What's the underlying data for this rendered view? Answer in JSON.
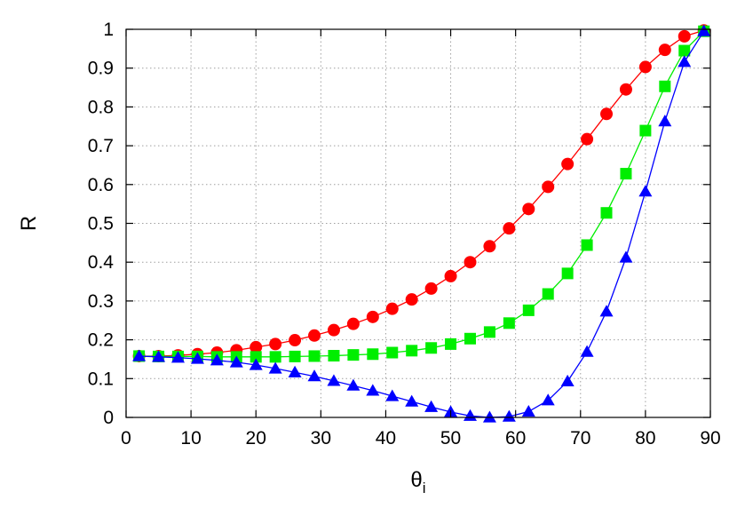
{
  "chart_data": {
    "type": "line",
    "title": "",
    "xlabel": "θ",
    "xlabel_subscript": "i",
    "ylabel": "R",
    "xlim": [
      0,
      90
    ],
    "ylim": [
      0,
      1
    ],
    "x_ticks": [
      "0",
      "10",
      "20",
      "30",
      "40",
      "50",
      "60",
      "70",
      "80",
      "90"
    ],
    "y_ticks": [
      "0",
      "0.1",
      "0.2",
      "0.3",
      "0.4",
      "0.5",
      "0.6",
      "0.7",
      "0.8",
      "0.9",
      "1"
    ],
    "grid": true,
    "legend": "none",
    "x": [
      2,
      5,
      8,
      11,
      14,
      17,
      20,
      23,
      26,
      29,
      32,
      35,
      38,
      41,
      44,
      47,
      50,
      53,
      56,
      59,
      62,
      65,
      68,
      71,
      74,
      77,
      80,
      83,
      86,
      89
    ],
    "series": [
      {
        "marker": "circle",
        "color": "#ff0000",
        "values": [
          0.158,
          0.158,
          0.16,
          0.163,
          0.167,
          0.173,
          0.181,
          0.189,
          0.199,
          0.211,
          0.225,
          0.241,
          0.259,
          0.28,
          0.304,
          0.332,
          0.364,
          0.4,
          0.441,
          0.487,
          0.537,
          0.594,
          0.653,
          0.717,
          0.782,
          0.845,
          0.903,
          0.947,
          0.982,
          0.997
        ]
      },
      {
        "marker": "square",
        "color": "#00ee00",
        "values": [
          0.158,
          0.157,
          0.157,
          0.157,
          0.156,
          0.156,
          0.156,
          0.156,
          0.157,
          0.158,
          0.159,
          0.161,
          0.163,
          0.167,
          0.172,
          0.179,
          0.189,
          0.203,
          0.22,
          0.243,
          0.276,
          0.318,
          0.371,
          0.444,
          0.527,
          0.628,
          0.739,
          0.853,
          0.945,
          0.995
        ]
      },
      {
        "marker": "triangle",
        "color": "#0000ff",
        "values": [
          0.158,
          0.156,
          0.154,
          0.151,
          0.147,
          0.142,
          0.135,
          0.126,
          0.116,
          0.106,
          0.094,
          0.082,
          0.069,
          0.055,
          0.041,
          0.027,
          0.014,
          0.004,
          0.0,
          0.002,
          0.015,
          0.044,
          0.093,
          0.169,
          0.273,
          0.412,
          0.582,
          0.763,
          0.916,
          0.995
        ]
      }
    ]
  }
}
